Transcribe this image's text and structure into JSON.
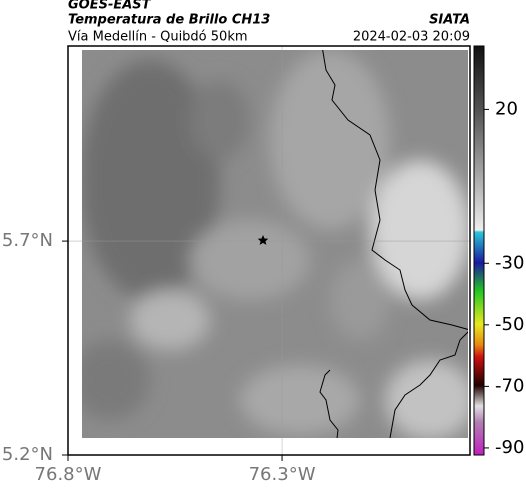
{
  "header": {
    "title": "GOES-EAST",
    "subtitle": "Temperatura de Brillo CH13",
    "route": "Vía Medellín - Quibdó 50km",
    "source": "SIATA",
    "datetime": "2024-02-03 20:09"
  },
  "map": {
    "latlim": [
      5.2,
      6.156
    ],
    "lonlim": [
      -76.8,
      -75.861
    ],
    "lat_ticks": [
      {
        "value": 5.7,
        "label": "5.7°N"
      },
      {
        "value": 5.2,
        "label": "5.2°N"
      }
    ],
    "lon_ticks": [
      {
        "value": -76.8,
        "label": "76.8°W"
      },
      {
        "value": -76.3,
        "label": "76.3°W"
      }
    ],
    "grid": true
  },
  "colorbar": {
    "clim": [
      40.6,
      -92.3
    ],
    "ticks": [
      20,
      -30,
      -50,
      -70,
      -90
    ]
  }
}
